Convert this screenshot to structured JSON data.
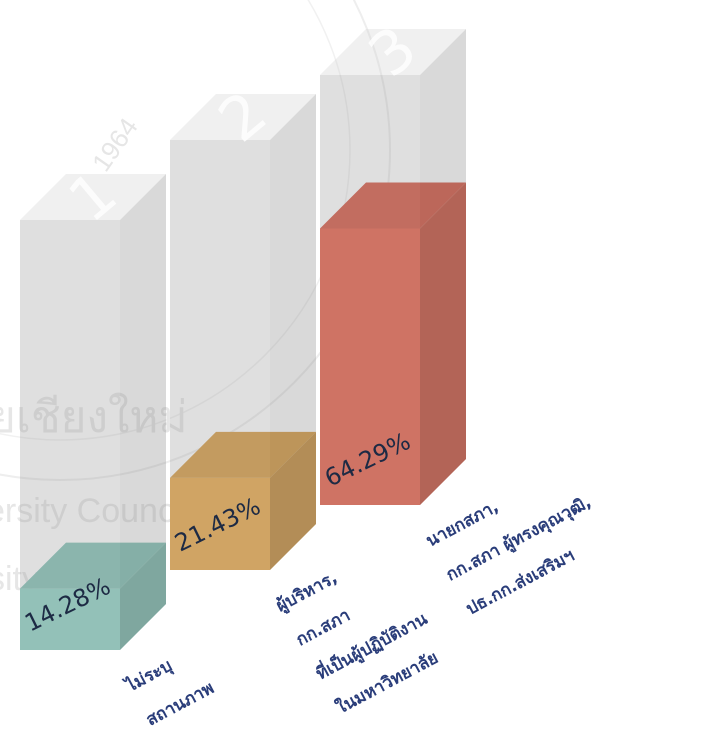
{
  "chart_data": {
    "type": "bar",
    "title": "",
    "xlabel": "",
    "ylabel": "",
    "ylim": [
      0,
      100
    ],
    "rank_labels": [
      "1",
      "2",
      "3"
    ],
    "categories": [
      [
        "ไม่ระบุ",
        "สถานภาพ"
      ],
      [
        "ผู้บริหาร,",
        "กก.สภา",
        "ที่เป็นผู้ปฏิบัติงาน",
        "ในมหาวิทยาลัย"
      ],
      [
        "นายกสภา,",
        "กก.สภา ผู้ทรงคุณวุฒิ,",
        "ปธ.กก.ส่งเสริมฯ"
      ]
    ],
    "values": [
      14.28,
      21.43,
      64.29
    ],
    "value_labels": [
      "14.28%",
      "21.43%",
      "64.29%"
    ],
    "colors": [
      "#8fd3c6",
      "#e9a84a",
      "#e8604a"
    ]
  },
  "watermark": {
    "line1": "ยเชียงใหม่",
    "line2": "ersity Council",
    "line3": "sity",
    "seal_year": "1964"
  }
}
